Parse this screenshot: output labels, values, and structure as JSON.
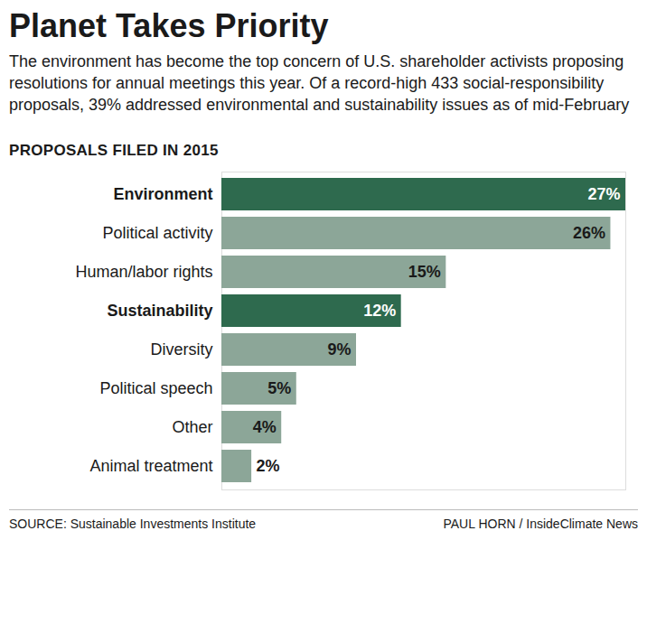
{
  "chart_data": {
    "type": "bar",
    "orientation": "horizontal",
    "title": "Planet Takes Priority",
    "subtitle": "The environment has become the top concern of U.S. shareholder activists proposing resolutions for annual meetings this year. Of a record-high 433 social-responsibility proposals, 39% addressed environmental and sustainability issues as of mid-February",
    "heading": "PROPOSALS FILED IN 2015",
    "source": "SOURCE: Sustainable Investments Institute",
    "credit": "PAUL HORN / InsideClimate News",
    "categories": [
      "Environment",
      "Political activity",
      "Human/labor rights",
      "Sustainability",
      "Diversity",
      "Political speech",
      "Other",
      "Animal treatment"
    ],
    "values": [
      27,
      26,
      15,
      12,
      9,
      5,
      4,
      2
    ],
    "value_labels": [
      "27%",
      "26%",
      "15%",
      "12%",
      "9%",
      "5%",
      "4%",
      "2%"
    ],
    "colors": [
      "#2e6a4e",
      "#8ca698",
      "#8ca698",
      "#2e6a4e",
      "#8ca698",
      "#8ca698",
      "#8ca698",
      "#8ca698"
    ],
    "data_labels": true,
    "tick_labels": "y",
    "grid": false,
    "xlim": [
      0,
      27
    ],
    "xticks": []
  }
}
